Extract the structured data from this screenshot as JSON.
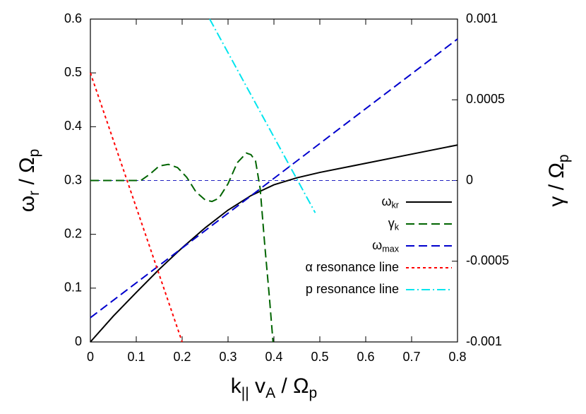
{
  "chart_data": {
    "type": "line",
    "x_label": [
      "k",
      "||",
      " v",
      "A",
      " / Ω",
      "p"
    ],
    "y_label": [
      "ω",
      "r",
      " / Ω",
      "p"
    ],
    "y2_label": [
      "γ / Ω",
      "p"
    ],
    "xlim": [
      0,
      0.8
    ],
    "xticks": [
      0,
      0.1,
      0.2,
      0.3,
      0.4,
      0.5,
      0.6,
      0.7,
      0.8
    ],
    "ylim": [
      0,
      0.6
    ],
    "yticks": [
      0,
      0.1,
      0.2,
      0.3,
      0.4,
      0.5,
      0.6
    ],
    "y2lim": [
      -0.001,
      0.001
    ],
    "y2ticks": [
      -0.001,
      -0.0005,
      0,
      0.0005,
      0.001
    ],
    "legend": "right",
    "series": [
      {
        "name": [
          "ω",
          "kr"
        ],
        "color": "#000000",
        "dash": "none",
        "x": [
          0,
          0.05,
          0.1,
          0.15,
          0.2,
          0.25,
          0.3,
          0.35,
          0.4,
          0.45,
          0.5,
          0.6,
          0.7,
          0.8
        ],
        "values": [
          0,
          0.048,
          0.092,
          0.135,
          0.175,
          0.212,
          0.245,
          0.272,
          0.292,
          0.305,
          0.315,
          0.332,
          0.349,
          0.366
        ]
      },
      {
        "name": [
          "γ",
          "k"
        ],
        "color": "#006400",
        "dash": "12,6",
        "axis": "y2",
        "x": [
          0,
          0.05,
          0.1,
          0.11,
          0.13,
          0.15,
          0.17,
          0.19,
          0.21,
          0.23,
          0.25,
          0.265,
          0.28,
          0.3,
          0.32,
          0.34,
          0.35,
          0.36,
          0.37,
          0.38,
          0.39,
          0.398
        ],
        "values": [
          0,
          0,
          0,
          0,
          4e-05,
          9e-05,
          0.0001,
          8e-05,
          2e-05,
          -7e-05,
          -0.00012,
          -0.00013,
          -0.00011,
          -2e-05,
          0.00011,
          0.00017,
          0.00016,
          0.00012,
          -5e-05,
          -0.0004,
          -0.00072,
          -0.001
        ]
      },
      {
        "name": [
          "ω",
          "max"
        ],
        "color": "#0000cd",
        "dash": "12,6",
        "x": [
          0,
          0.8
        ],
        "values": [
          0.045,
          0.563
        ]
      },
      {
        "name": [
          "α resonance line"
        ],
        "color": "#ff0000",
        "dash": "4,4",
        "x": [
          0,
          0.2
        ],
        "values": [
          0.5,
          0
        ]
      },
      {
        "name": [
          "p resonance line"
        ],
        "color": "#00e5ee",
        "dash": "12,4,2,4",
        "x": [
          0.26,
          0.49
        ],
        "values": [
          0.6,
          0.24
        ]
      }
    ]
  }
}
